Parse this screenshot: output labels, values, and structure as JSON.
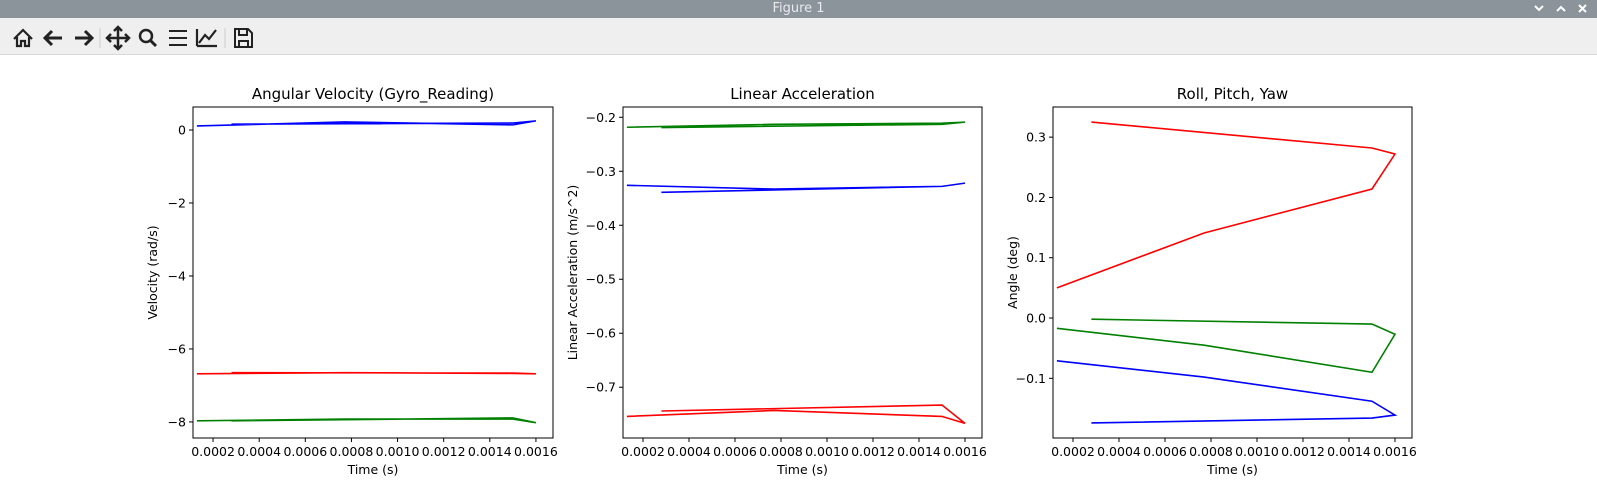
{
  "window": {
    "title": "Figure 1"
  },
  "chart_data": [
    {
      "type": "line",
      "title": "Angular Velocity (Gyro_Reading)",
      "xlabel": "Time (s)",
      "ylabel": "Velocity (rad/s)",
      "x": [
        0.00013,
        0.00077,
        0.0015,
        0.0016,
        0.0015,
        0.00028
      ],
      "series": [
        {
          "color": "#0000ff",
          "values": [
            0.11,
            0.22,
            0.14,
            0.25,
            0.19,
            0.16
          ]
        },
        {
          "color": "#ff0000",
          "values": [
            -6.68,
            -6.65,
            -6.67,
            -6.68,
            -6.66,
            -6.65
          ]
        },
        {
          "color": "#008000",
          "values": [
            -7.97,
            -7.92,
            -7.92,
            -8.02,
            -7.89,
            -7.97
          ]
        }
      ],
      "xlim": [
        0.000113,
        0.001674
      ],
      "ylim": [
        -8.44,
        0.63
      ],
      "xticks": [
        0.0002,
        0.0004,
        0.0006,
        0.0008,
        {
          "value": 0.001,
          "label": "0.0010"
        },
        0.0012,
        0.0014,
        0.0016
      ],
      "yticks": [
        {
          "value": -8,
          "label": "−8"
        },
        {
          "value": -6,
          "label": "−6"
        },
        {
          "value": -4,
          "label": "−4"
        },
        {
          "value": -2,
          "label": "−2"
        },
        0
      ]
    },
    {
      "type": "line",
      "title": "Linear Acceleration",
      "xlabel": "Time (s)",
      "ylabel": "Linear Acceleration (m/s^2)",
      "x": [
        0.00013,
        0.00077,
        0.0015,
        0.0016,
        0.0015,
        0.00028
      ],
      "series": [
        {
          "color": "#008000",
          "values": [
            -0.2185,
            -0.213,
            -0.211,
            -0.209,
            -0.213,
            -0.219
          ]
        },
        {
          "color": "#0000ff",
          "values": [
            -0.326,
            -0.333,
            -0.328,
            -0.322,
            -0.328,
            -0.339
          ]
        },
        {
          "color": "#ff0000",
          "values": [
            -0.754,
            -0.743,
            -0.754,
            -0.767,
            -0.733,
            -0.744
          ]
        }
      ],
      "xlim": [
        0.000113,
        0.001674
      ],
      "ylim": [
        -0.794,
        -0.181
      ],
      "xticks": [
        0.0002,
        0.0004,
        0.0006,
        0.0008,
        {
          "value": 0.001,
          "label": "0.0010"
        },
        0.0012,
        0.0014,
        0.0016
      ],
      "yticks": [
        {
          "value": -0.7,
          "label": "−0.7"
        },
        {
          "value": -0.6,
          "label": "−0.6"
        },
        {
          "value": -0.5,
          "label": "−0.5"
        },
        {
          "value": -0.4,
          "label": "−0.4"
        },
        {
          "value": -0.3,
          "label": "−0.3"
        },
        {
          "value": -0.2,
          "label": "−0.2"
        }
      ]
    },
    {
      "type": "line",
      "title": "Roll, Pitch, Yaw",
      "xlabel": "Time (s)",
      "ylabel": "Angle (deg)",
      "x": [
        0.00013,
        0.00077,
        0.0015,
        0.0016,
        0.0015,
        0.00028
      ],
      "series": [
        {
          "color": "#ff0000",
          "values": [
            0.05,
            0.141,
            0.214,
            0.272,
            0.282,
            0.325
          ]
        },
        {
          "color": "#008000",
          "values": [
            -0.017,
            -0.045,
            -0.09,
            -0.027,
            -0.01,
            -0.002
          ]
        },
        {
          "color": "#0000ff",
          "values": [
            -0.071,
            -0.098,
            -0.138,
            -0.161,
            -0.166,
            -0.174
          ]
        }
      ],
      "xlim": [
        0.000113,
        0.001674
      ],
      "ylim": [
        -0.199,
        0.35
      ],
      "xticks": [
        0.0002,
        0.0004,
        0.0006,
        0.0008,
        {
          "value": 0.001,
          "label": "0.0010"
        },
        0.0012,
        0.0014,
        0.0016
      ],
      "yticks": [
        {
          "value": -0.1,
          "label": "−0.1"
        },
        {
          "value": 0,
          "label": "0.0"
        },
        0.1,
        0.2,
        0.3
      ]
    }
  ]
}
